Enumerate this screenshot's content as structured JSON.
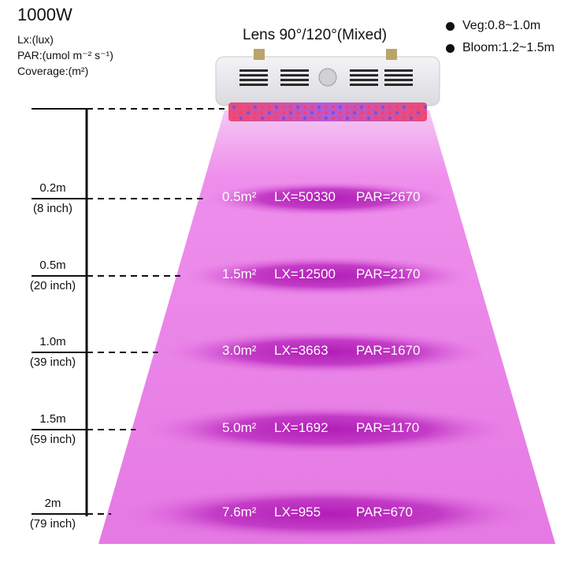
{
  "title": "1000W",
  "legend": {
    "lx": "Lx:(lux)",
    "par": "PAR:(umol m⁻² s⁻¹)",
    "coverage": "Coverage:(m²)"
  },
  "lens": "Lens 90°/120°(Mixed)",
  "bullets": [
    "Veg:0.8~1.0m",
    "Bloom:1.2~1.5m"
  ],
  "rows": [
    {
      "height": "0.2m",
      "inch": "(8 inch)",
      "area": "0.5m²",
      "lx": "LX=50330",
      "par": "PAR=2670"
    },
    {
      "height": "0.5m",
      "inch": "(20 inch)",
      "area": "1.5m²",
      "lx": "LX=12500",
      "par": "PAR=2170"
    },
    {
      "height": "1.0m",
      "inch": "(39 inch)",
      "area": "3.0m²",
      "lx": "LX=3663",
      "par": "PAR=1670"
    },
    {
      "height": "1.5m",
      "inch": "(59 inch)",
      "area": "5.0m²",
      "lx": "LX=1692",
      "par": "PAR=1170"
    },
    {
      "height": "2m",
      "inch": "(79 inch)",
      "area": "7.6m²",
      "lx": "LX=955",
      "par": "PAR=670"
    }
  ],
  "colors": {
    "beam": "#e872e6",
    "ring": "#c436c8",
    "panel": "#e9e9ee"
  }
}
